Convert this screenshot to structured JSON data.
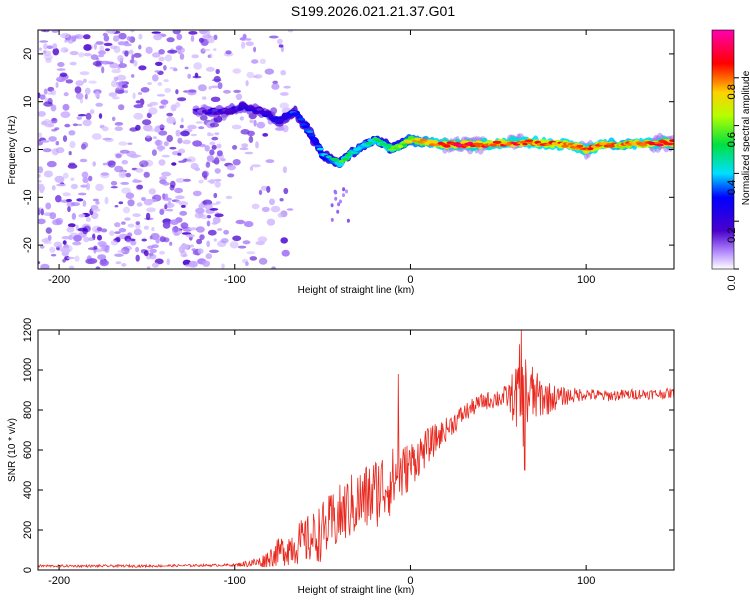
{
  "title": "S199.2026.021.21.37.G01",
  "chart_data": [
    {
      "type": "heatmap",
      "xlabel": "Height of straight line (km)",
      "ylabel": "Frequency (Hz)",
      "xlim": [
        -212,
        150
      ],
      "ylim": [
        -25,
        25
      ],
      "xticks": [
        -200,
        -100,
        0,
        100
      ],
      "yticks": [
        -20,
        -10,
        0,
        10,
        20
      ],
      "xtick_labels": [
        "-200",
        "-100",
        "0",
        "100"
      ],
      "ytick_labels": [
        "-20",
        "-10",
        "0",
        "10",
        "20"
      ],
      "colorbar": {
        "label": "Normalized spectral amplitude",
        "range": [
          0,
          1
        ],
        "ticks": [
          0,
          0.2,
          0.4,
          0.6,
          0.8
        ],
        "tick_labels": [
          "0.0",
          "0.2",
          "0.4",
          "0.6",
          "0.8"
        ],
        "colormap": "rainbow (white-violet-blue-cyan-green-yellow-red-magenta)"
      },
      "ridge": {
        "x": [
          -120,
          -105,
          -95,
          -85,
          -75,
          -66,
          -60,
          -55,
          -50,
          -45,
          -40,
          -35,
          -30,
          -25,
          -20,
          -15,
          -10,
          -5,
          0,
          10,
          20,
          30,
          40,
          50,
          60,
          70,
          80,
          90,
          100,
          110,
          120,
          130,
          140,
          150
        ],
        "y": [
          8,
          8,
          9,
          8,
          6,
          8,
          5,
          2,
          -1,
          -2,
          -3,
          -1,
          0,
          1,
          2,
          1,
          0,
          1,
          2,
          1.5,
          1,
          1,
          1,
          1.2,
          1.5,
          1.5,
          1.2,
          1,
          0,
          1,
          1,
          1.2,
          1.3,
          1.5
        ],
        "strength": [
          0.15,
          0.2,
          0.2,
          0.2,
          0.25,
          0.3,
          0.3,
          0.3,
          0.35,
          0.4,
          0.5,
          0.5,
          0.45,
          0.45,
          0.5,
          0.5,
          0.55,
          0.6,
          0.7,
          0.75,
          0.85,
          0.9,
          0.85,
          0.8,
          0.85,
          0.8,
          0.8,
          0.8,
          0.85,
          0.8,
          0.75,
          0.8,
          0.85,
          0.9
        ]
      },
      "noise_region_x": [
        -212,
        -88
      ]
    },
    {
      "type": "line",
      "xlabel": "Height of straight line (km)",
      "ylabel": "SNR (10 * v/v)",
      "xlim": [
        -212,
        150
      ],
      "ylim": [
        0,
        1200
      ],
      "xticks": [
        -200,
        -100,
        0,
        100
      ],
      "yticks": [
        0,
        200,
        400,
        600,
        800,
        1000,
        1200
      ],
      "xtick_labels": [
        "-200",
        "-100",
        "0",
        "100"
      ],
      "ytick_labels": [
        "0",
        "200",
        "400",
        "600",
        "800",
        "1000",
        "1200"
      ],
      "color": "#e8281e",
      "baseline": {
        "x": [
          -212,
          -150,
          -100,
          -85,
          -75,
          -65,
          -55,
          -45,
          -35,
          -25,
          -15,
          -5,
          0,
          10,
          20,
          30,
          40,
          50,
          60,
          65,
          70,
          80,
          90,
          100,
          110,
          120,
          130,
          140,
          150
        ],
        "y": [
          20,
          20,
          25,
          40,
          90,
          130,
          160,
          230,
          310,
          360,
          420,
          480,
          530,
          620,
          700,
          780,
          840,
          860,
          870,
          880,
          870,
          860,
          870,
          880,
          870,
          875,
          880,
          880,
          885
        ]
      },
      "noise_amplitude": {
        "x": [
          -212,
          -100,
          -85,
          -70,
          -50,
          -30,
          -15,
          0,
          20,
          40,
          55,
          60,
          63,
          66,
          72,
          85,
          100,
          150
        ],
        "y": [
          6,
          6,
          30,
          90,
          150,
          170,
          190,
          120,
          60,
          40,
          60,
          160,
          300,
          220,
          120,
          50,
          30,
          25
        ]
      },
      "spikes": [
        {
          "x": -7,
          "y": 980
        },
        {
          "x": 63,
          "y": 1200
        },
        {
          "x": 65,
          "y": 500
        }
      ]
    }
  ]
}
